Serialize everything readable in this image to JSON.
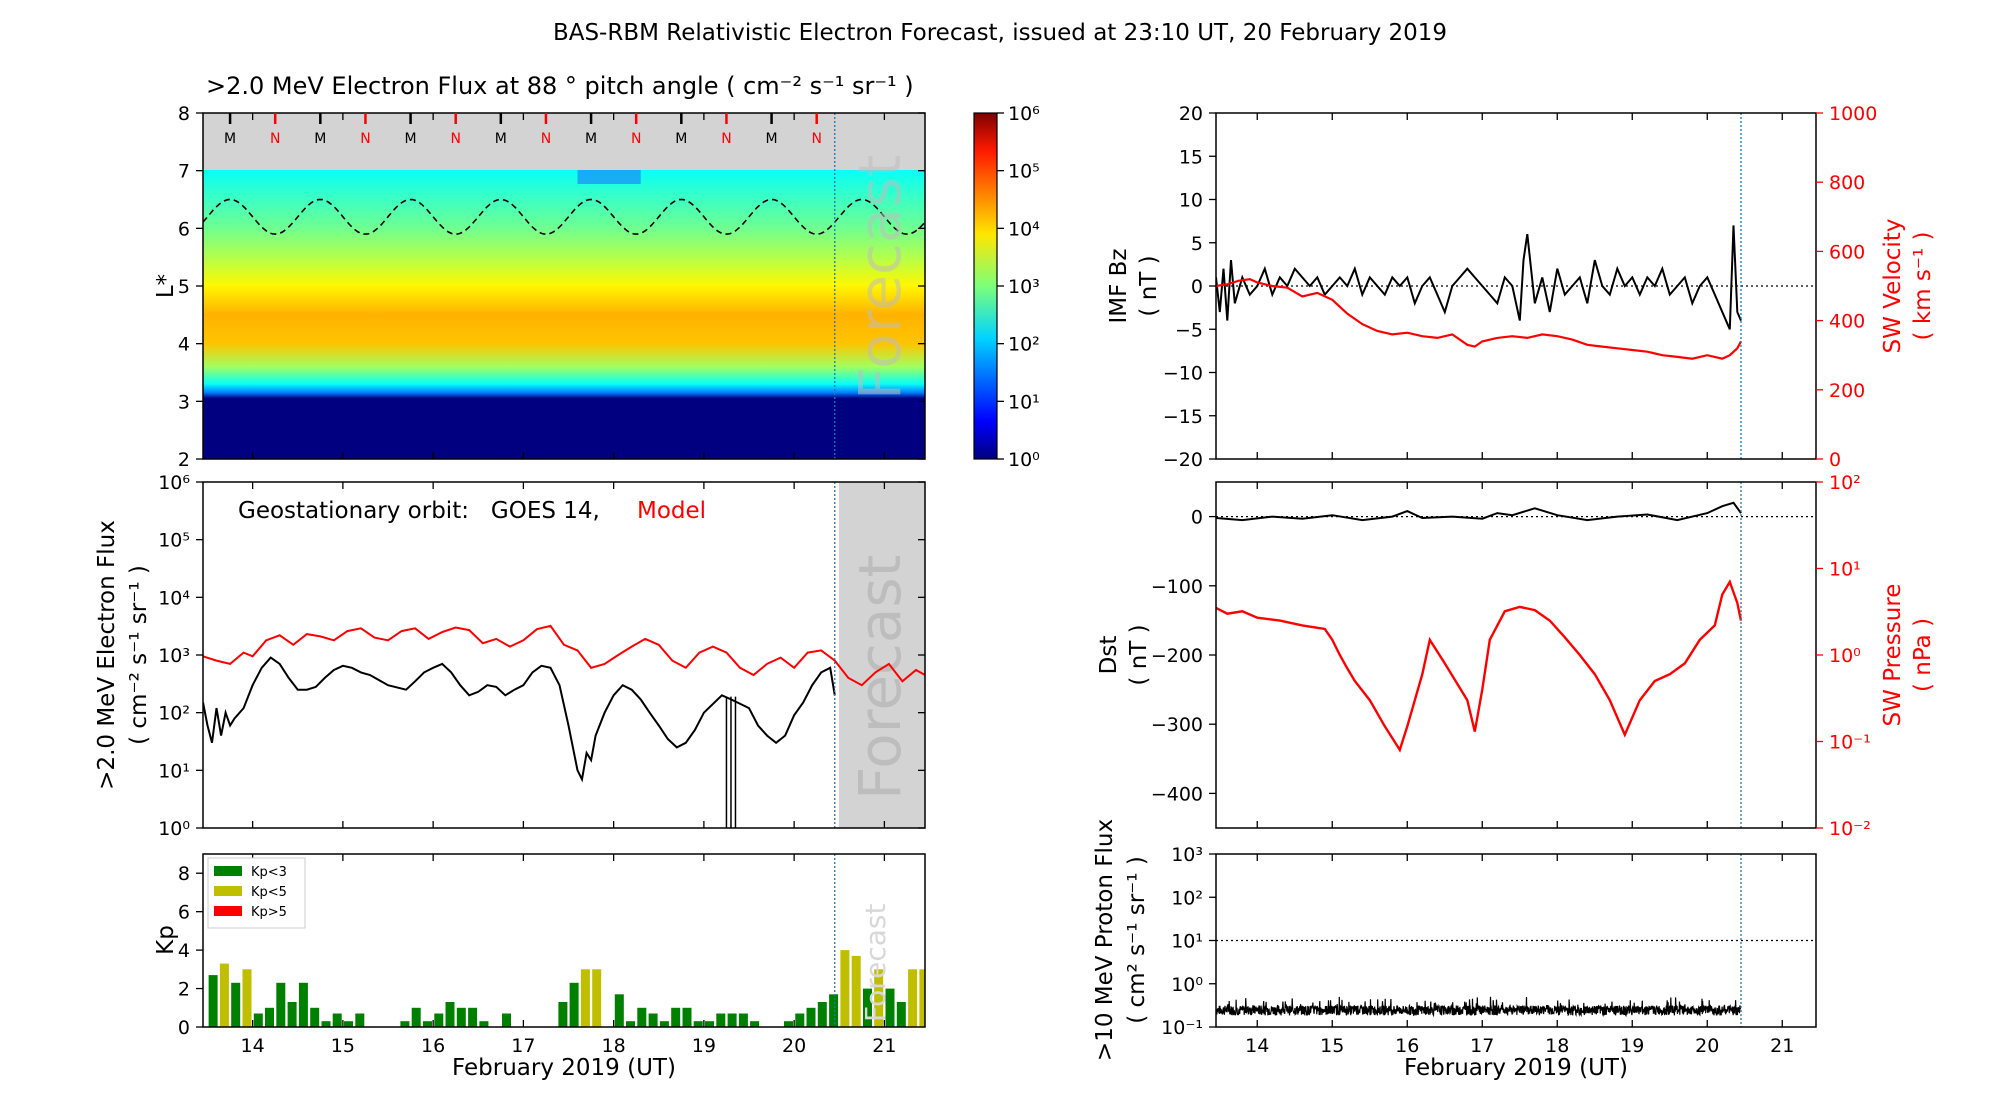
{
  "figure": {
    "title": "BAS-RBM Relativistic Electron Forecast, issued at 23:10 UT, 20 February 2019"
  },
  "colors": {
    "observed": "#000000",
    "model": "#ff0000",
    "kp_low": "#008000",
    "kp_mid": "#bfbf00",
    "kp_high": "#ff0000",
    "forecast_shade": "#d3d3d3",
    "now_line": "#1f77b4"
  },
  "chart_data": [
    {
      "id": "flux_map",
      "type": "heatmap",
      "title": ">2.0 MeV Electron Flux at 88 ° pitch angle ( cm⁻² s⁻¹ sr⁻¹ )",
      "ylabel": "L*",
      "ylim": [
        2,
        8
      ],
      "yticks": [
        "2",
        "3",
        "4",
        "5",
        "6",
        "7",
        "8"
      ],
      "xlim": [
        13.45,
        21.45
      ],
      "colorbar": {
        "ticks": [
          "10⁰",
          "10¹",
          "10²",
          "10³",
          "10⁴",
          "10⁵",
          "10⁶"
        ],
        "range_log10": [
          0,
          6
        ]
      },
      "profile": [
        {
          "L": 2.0,
          "log_flux": 0.0
        },
        {
          "L": 3.05,
          "log_flux": 0.0
        },
        {
          "L": 3.15,
          "log_flux": 1.5
        },
        {
          "L": 3.3,
          "log_flux": 2.3
        },
        {
          "L": 3.6,
          "log_flux": 3.2
        },
        {
          "L": 4.0,
          "log_flux": 4.1
        },
        {
          "L": 4.5,
          "log_flux": 4.2
        },
        {
          "L": 5.0,
          "log_flux": 3.8
        },
        {
          "L": 5.5,
          "log_flux": 3.3
        },
        {
          "L": 6.0,
          "log_flux": 2.9
        },
        {
          "L": 6.5,
          "log_flux": 2.6
        },
        {
          "L": 7.0,
          "log_flux": 2.3
        }
      ],
      "magnetopause_note": "dashed line oscillates between L 5.9 and 6.5",
      "mn_markers": [
        "M",
        "N",
        "M",
        "N",
        "M",
        "N",
        "M",
        "N",
        "M",
        "N",
        "M",
        "N",
        "M",
        "N"
      ],
      "forecast_label": "Forecast"
    },
    {
      "id": "geo_flux",
      "type": "line",
      "annotation_prefix": "Geostationary orbit:   GOES 14, ",
      "annotation_model": "Model",
      "ylabel": ">2.0 MeV Electron Flux",
      "yunits": "( cm⁻² s⁻¹ sr⁻¹ )",
      "yscale": "log",
      "ylim": [
        1,
        1000000
      ],
      "yticks": [
        "10⁰",
        "10¹",
        "10²",
        "10³",
        "10⁴",
        "10⁵",
        "10⁶"
      ],
      "xlim": [
        13.45,
        21.45
      ],
      "series": [
        {
          "name": "GOES 14",
          "color": "#000000",
          "x": [
            13.45,
            13.5,
            13.55,
            13.6,
            13.65,
            13.7,
            13.75,
            13.8,
            13.9,
            14.0,
            14.1,
            14.2,
            14.3,
            14.4,
            14.5,
            14.6,
            14.7,
            14.8,
            14.9,
            15.0,
            15.1,
            15.2,
            15.3,
            15.5,
            15.7,
            15.8,
            15.9,
            16.0,
            16.1,
            16.2,
            16.3,
            16.4,
            16.5,
            16.6,
            16.7,
            16.8,
            16.9,
            17.0,
            17.1,
            17.2,
            17.3,
            17.4,
            17.5,
            17.6,
            17.65,
            17.7,
            17.75,
            17.8,
            17.9,
            18.0,
            18.1,
            18.2,
            18.3,
            18.4,
            18.5,
            18.6,
            18.7,
            18.8,
            18.9,
            19.0,
            19.2,
            19.3,
            19.5,
            19.6,
            19.7,
            19.8,
            19.9,
            20.0,
            20.1,
            20.2,
            20.3,
            20.4,
            20.45
          ],
          "y": [
            150,
            60,
            30,
            120,
            40,
            100,
            60,
            80,
            120,
            300,
            600,
            900,
            700,
            400,
            250,
            250,
            280,
            400,
            550,
            650,
            600,
            500,
            450,
            300,
            250,
            350,
            500,
            600,
            700,
            500,
            300,
            200,
            230,
            300,
            280,
            200,
            250,
            300,
            500,
            650,
            600,
            300,
            60,
            10,
            7,
            20,
            15,
            40,
            100,
            200,
            300,
            250,
            170,
            100,
            60,
            35,
            25,
            30,
            50,
            100,
            200,
            170,
            120,
            60,
            40,
            30,
            40,
            90,
            150,
            300,
            500,
            600,
            200
          ]
        },
        {
          "name": "Model",
          "color": "#ff0000",
          "x": [
            13.45,
            13.6,
            13.75,
            13.9,
            14.0,
            14.15,
            14.3,
            14.45,
            14.6,
            14.75,
            14.9,
            15.05,
            15.2,
            15.35,
            15.5,
            15.65,
            15.8,
            15.95,
            16.1,
            16.25,
            16.4,
            16.55,
            16.7,
            16.85,
            17.0,
            17.15,
            17.3,
            17.45,
            17.6,
            17.75,
            17.9,
            18.05,
            18.2,
            18.35,
            18.5,
            18.65,
            18.8,
            18.95,
            19.1,
            19.25,
            19.4,
            19.55,
            19.7,
            19.85,
            20.0,
            20.15,
            20.3,
            20.45,
            20.6,
            20.75,
            20.9,
            21.05,
            21.2,
            21.35,
            21.45
          ],
          "y": [
            950,
            800,
            700,
            1100,
            950,
            1800,
            2200,
            1500,
            2300,
            2100,
            1800,
            2600,
            2900,
            2000,
            1800,
            2600,
            2900,
            1900,
            2500,
            3000,
            2700,
            1600,
            1900,
            1400,
            1800,
            2800,
            3200,
            1500,
            1200,
            600,
            700,
            1000,
            1400,
            1900,
            1500,
            800,
            600,
            1100,
            1400,
            1100,
            600,
            450,
            700,
            900,
            600,
            1100,
            1200,
            800,
            400,
            300,
            500,
            700,
            350,
            550,
            450
          ]
        }
      ],
      "forecast_label": "Forecast"
    },
    {
      "id": "kp_bars",
      "type": "bar",
      "ylabel": "Kp",
      "ylim": [
        0,
        9
      ],
      "yticks": [
        "0",
        "2",
        "4",
        "6",
        "8"
      ],
      "xlim": [
        13.45,
        21.45
      ],
      "xlabel": "February 2019 (UT)",
      "xticks": [
        "14",
        "15",
        "16",
        "17",
        "18",
        "19",
        "20",
        "21"
      ],
      "legend": [
        "Kp<3",
        "Kp<5",
        "Kp>5"
      ],
      "thresholds": [
        3,
        5
      ],
      "bar_width_days": 0.1,
      "x": [
        13.5625,
        13.6875,
        13.8125,
        13.9375,
        14.0625,
        14.1875,
        14.3125,
        14.4375,
        14.5625,
        14.6875,
        14.8125,
        14.9375,
        15.0625,
        15.1875,
        15.3125,
        15.4375,
        15.5625,
        15.6875,
        15.8125,
        15.9375,
        16.0625,
        16.1875,
        16.3125,
        16.4375,
        16.5625,
        16.6875,
        16.8125,
        16.9375,
        17.0625,
        17.1875,
        17.3125,
        17.4375,
        17.5625,
        17.6875,
        17.8125,
        17.9375,
        18.0625,
        18.1875,
        18.3125,
        18.4375,
        18.5625,
        18.6875,
        18.8125,
        18.9375,
        19.0625,
        19.1875,
        19.3125,
        19.4375,
        19.5625,
        19.6875,
        19.8125,
        19.9375,
        20.0625,
        20.1875,
        20.3125,
        20.4375,
        20.5625,
        20.6875,
        20.8125,
        20.9375,
        21.0625,
        21.1875,
        21.3125,
        21.4375
      ],
      "values": [
        2.7,
        3.3,
        2.3,
        3.0,
        0.7,
        1.0,
        2.3,
        1.3,
        2.3,
        1.0,
        0.3,
        0.7,
        0.3,
        0.7,
        0,
        0,
        0,
        0.3,
        1.0,
        0.3,
        0.7,
        1.3,
        1.0,
        1.0,
        0.3,
        0,
        0.7,
        0,
        0,
        0,
        0,
        1.3,
        2.3,
        3.0,
        3.0,
        0,
        1.7,
        0.3,
        1.0,
        0.7,
        0.3,
        1.0,
        1.0,
        0.3,
        0.3,
        0.7,
        0.7,
        0.7,
        0.3,
        0,
        0,
        0.3,
        0.7,
        1.0,
        1.3,
        1.7,
        4.0,
        3.7,
        2.0,
        3.0,
        2.0,
        1.3,
        3.0,
        3.0
      ]
    },
    {
      "id": "imf_sw",
      "type": "line",
      "ylabel": "IMF Bz",
      "yunits": "( nT )",
      "ylim": [
        -20,
        20
      ],
      "yticks": [
        "−20",
        "−15",
        "−10",
        "−5",
        "0",
        "5",
        "10",
        "15",
        "20"
      ],
      "y2label": "SW Velocity",
      "y2units": "( km s⁻¹ )",
      "y2lim": [
        0,
        1000
      ],
      "y2ticks": [
        "0",
        "200",
        "400",
        "600",
        "800",
        "1000"
      ],
      "xlim": [
        13.45,
        21.45
      ],
      "series": [
        {
          "name": "IMF Bz",
          "color": "#000000",
          "x": [
            13.45,
            13.5,
            13.55,
            13.6,
            13.65,
            13.7,
            13.8,
            13.9,
            14.0,
            14.1,
            14.2,
            14.3,
            14.4,
            14.5,
            14.6,
            14.7,
            14.8,
            14.9,
            15.0,
            15.1,
            15.2,
            15.3,
            15.4,
            15.5,
            15.6,
            15.7,
            15.8,
            15.9,
            16.0,
            16.1,
            16.2,
            16.3,
            16.4,
            16.5,
            16.6,
            16.7,
            16.8,
            16.9,
            17.0,
            17.1,
            17.2,
            17.3,
            17.4,
            17.5,
            17.55,
            17.6,
            17.7,
            17.8,
            17.9,
            18.0,
            18.1,
            18.2,
            18.3,
            18.4,
            18.5,
            18.6,
            18.7,
            18.8,
            18.9,
            19.0,
            19.1,
            19.2,
            19.3,
            19.4,
            19.5,
            19.6,
            19.7,
            19.8,
            19.9,
            20.0,
            20.1,
            20.2,
            20.3,
            20.35,
            20.4,
            20.45
          ],
          "y": [
            1,
            -3,
            2,
            -4,
            3,
            -2,
            1,
            -1,
            0,
            2,
            -1,
            1,
            0,
            2,
            1,
            0,
            1,
            -1,
            0,
            1,
            0,
            2,
            -1,
            1,
            0,
            -1,
            1,
            0,
            1,
            -2,
            0,
            1,
            -1,
            -3,
            0,
            1,
            2,
            1,
            0,
            -1,
            -2,
            1,
            0,
            -4,
            3,
            6,
            -2,
            1,
            -3,
            2,
            -1,
            0,
            1,
            -2,
            3,
            0,
            -1,
            2,
            0,
            1,
            -1,
            1,
            0,
            2,
            -1,
            0,
            1,
            -2,
            0,
            1,
            -1,
            -3,
            -5,
            7,
            -3,
            -4
          ]
        },
        {
          "name": "SW Velocity",
          "color": "#ff0000",
          "x": [
            13.45,
            13.6,
            13.75,
            13.9,
            14.0,
            14.2,
            14.4,
            14.6,
            14.8,
            15.0,
            15.2,
            15.4,
            15.6,
            15.8,
            16.0,
            16.2,
            16.4,
            16.6,
            16.8,
            16.9,
            17.0,
            17.2,
            17.4,
            17.6,
            17.8,
            18.0,
            18.2,
            18.4,
            18.6,
            18.8,
            19.0,
            19.2,
            19.4,
            19.6,
            19.8,
            20.0,
            20.2,
            20.3,
            20.4,
            20.45
          ],
          "y": [
            500,
            505,
            515,
            520,
            510,
            500,
            495,
            470,
            480,
            460,
            420,
            390,
            370,
            360,
            365,
            355,
            350,
            360,
            330,
            325,
            340,
            350,
            355,
            350,
            360,
            355,
            345,
            330,
            325,
            320,
            315,
            310,
            300,
            295,
            290,
            300,
            290,
            300,
            320,
            340
          ]
        }
      ]
    },
    {
      "id": "dst_pressure",
      "type": "line",
      "ylabel": "Dst",
      "yunits": "( nT )",
      "ylim": [
        -450,
        50
      ],
      "yticks": [
        "−400",
        "−300",
        "−200",
        "−100",
        "0"
      ],
      "y2label": "SW Pressure",
      "y2units": "( nPa )",
      "y2scale": "log",
      "y2lim": [
        0.01,
        100
      ],
      "y2ticks": [
        "10⁻²",
        "10⁻¹",
        "10⁰",
        "10¹",
        "10²"
      ],
      "xlim": [
        13.45,
        21.45
      ],
      "series": [
        {
          "name": "Dst",
          "color": "#000000",
          "x": [
            13.45,
            13.8,
            14.2,
            14.6,
            15.0,
            15.4,
            15.8,
            16.0,
            16.2,
            16.6,
            17.0,
            17.2,
            17.4,
            17.7,
            18.0,
            18.4,
            18.8,
            19.2,
            19.6,
            20.0,
            20.2,
            20.35,
            20.45
          ],
          "y": [
            -2,
            -5,
            0,
            -3,
            2,
            -5,
            0,
            8,
            -2,
            0,
            -3,
            5,
            2,
            12,
            2,
            -5,
            0,
            3,
            -5,
            5,
            15,
            20,
            5
          ]
        },
        {
          "name": "SW Pressure",
          "color": "#ff0000",
          "x": [
            13.45,
            13.6,
            13.8,
            14.0,
            14.3,
            14.6,
            14.9,
            15.0,
            15.1,
            15.2,
            15.3,
            15.5,
            15.7,
            15.9,
            16.0,
            16.2,
            16.3,
            16.5,
            16.8,
            16.9,
            17.0,
            17.1,
            17.3,
            17.5,
            17.7,
            17.9,
            18.1,
            18.3,
            18.5,
            18.7,
            18.9,
            19.1,
            19.3,
            19.5,
            19.7,
            19.9,
            20.1,
            20.2,
            20.3,
            20.4,
            20.45
          ],
          "y": [
            3.5,
            3.0,
            3.2,
            2.7,
            2.5,
            2.2,
            2.0,
            1.5,
            1.0,
            0.7,
            0.5,
            0.3,
            0.15,
            0.08,
            0.15,
            0.6,
            1.5,
            0.8,
            0.3,
            0.13,
            0.4,
            1.5,
            3.2,
            3.6,
            3.3,
            2.5,
            1.6,
            1.0,
            0.6,
            0.3,
            0.12,
            0.3,
            0.5,
            0.6,
            0.8,
            1.5,
            2.2,
            5.0,
            7.0,
            4.0,
            2.5
          ]
        }
      ]
    },
    {
      "id": "proton_flux",
      "type": "line",
      "ylabel": ">10 MeV Proton Flux",
      "yunits": "( cm² s⁻¹ sr⁻¹ )",
      "yscale": "log",
      "ylim": [
        0.1,
        1000
      ],
      "yticks": [
        "10⁻¹",
        "10⁰",
        "10¹",
        "10²",
        "10³"
      ],
      "threshold": 10,
      "xlim": [
        13.45,
        21.45
      ],
      "xlabel": "February 2019 (UT)",
      "xticks": [
        "14",
        "15",
        "16",
        "17",
        "18",
        "19",
        "20",
        "21"
      ],
      "series": [
        {
          "name": ">10 MeV Proton Flux",
          "color": "#000000",
          "x": [
            13.45,
            20.45
          ],
          "y_range": [
            0.12,
            0.5
          ],
          "typical": 0.25
        }
      ]
    }
  ]
}
